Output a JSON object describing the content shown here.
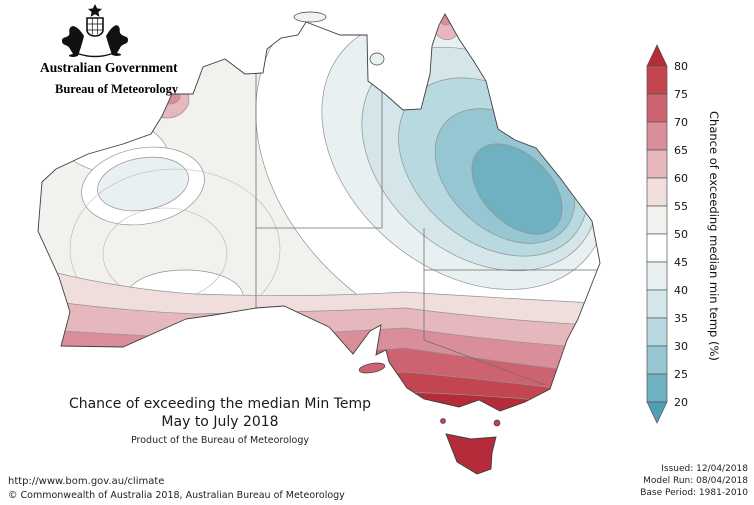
{
  "header": {
    "government": "Australian Government",
    "bureau": "Bureau of Meteorology"
  },
  "map": {
    "title_line1": "Chance of exceeding the median Min Temp",
    "title_line2": "May to July 2018",
    "subtitle": "Product of the Bureau of Meteorology"
  },
  "legend": {
    "label": "Chance of exceeding median min temp (%)",
    "boundaries": [
      "80",
      "75",
      "70",
      "65",
      "60",
      "55",
      "50",
      "45",
      "40",
      "35",
      "30",
      "25",
      "20"
    ],
    "segments": [
      {
        "range": ">80",
        "color": "#b52b3a"
      },
      {
        "range": "75-80",
        "color": "#c2454f"
      },
      {
        "range": "70-75",
        "color": "#cd6370"
      },
      {
        "range": "65-70",
        "color": "#d98e99"
      },
      {
        "range": "60-65",
        "color": "#e6b8be"
      },
      {
        "range": "55-60",
        "color": "#f0dedd"
      },
      {
        "range": "50-55",
        "color": "#f2f1ee"
      },
      {
        "range": "45-50",
        "color": "#ffffff"
      },
      {
        "range": "40-45",
        "color": "#e8f0f1"
      },
      {
        "range": "35-40",
        "color": "#d4e6e9"
      },
      {
        "range": "30-35",
        "color": "#b8d9df"
      },
      {
        "range": "25-30",
        "color": "#95c6d1"
      },
      {
        "range": "20-25",
        "color": "#6fb0c1"
      },
      {
        "range": "<20",
        "color": "#4f9fb4"
      }
    ]
  },
  "footer": {
    "url": "http://www.bom.gov.au/climate",
    "copyright": "© Commonwealth of Australia 2018, Australian Bureau of Meteorology",
    "issued": "Issued: 12/04/2018",
    "model_run": "Model Run: 08/04/2018",
    "base_period": "Base Period: 1981-2010"
  }
}
